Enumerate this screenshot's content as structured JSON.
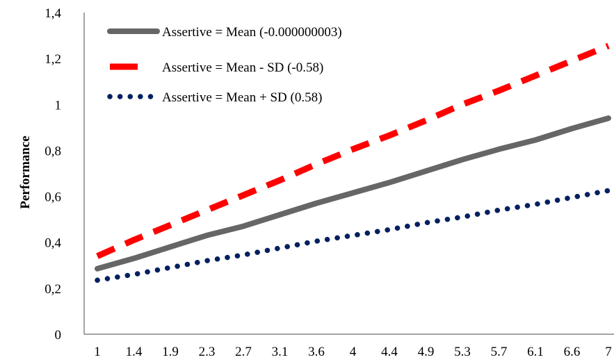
{
  "chart_data": {
    "type": "line",
    "title": "",
    "xlabel": "",
    "ylabel": "Performance",
    "categories": [
      "1",
      "1.4",
      "1.9",
      "2.3",
      "2.7",
      "3.1",
      "3.6",
      "4",
      "4.4",
      "4.9",
      "5.3",
      "5.7",
      "6.1",
      "6.6",
      "7"
    ],
    "y_ticks": [
      "0",
      "0,2",
      "0,4",
      "0,6",
      "0,8",
      "1",
      "1,2",
      "1,4"
    ],
    "ylim": [
      0,
      1.4
    ],
    "grid": false,
    "legend_position": "top-left",
    "series": [
      {
        "name": "Assertive = Mean (-0.000000003)",
        "color": "#666666",
        "style": "solid",
        "values": [
          0.285,
          0.33,
          0.38,
          0.43,
          0.47,
          0.52,
          0.57,
          0.615,
          0.66,
          0.71,
          0.76,
          0.805,
          0.845,
          0.895,
          0.94
        ]
      },
      {
        "name": "Assertive = Mean - SD (-0.58)",
        "color": "#ff0000",
        "style": "dashed",
        "values": [
          0.34,
          0.41,
          0.475,
          0.54,
          0.605,
          0.67,
          0.74,
          0.805,
          0.865,
          0.93,
          1.0,
          1.06,
          1.125,
          1.19,
          1.255
        ]
      },
      {
        "name": "Assertive = Mean + SD (0.58)",
        "color": "#002060",
        "style": "dotted",
        "values": [
          0.235,
          0.26,
          0.29,
          0.32,
          0.345,
          0.375,
          0.405,
          0.43,
          0.455,
          0.485,
          0.51,
          0.54,
          0.565,
          0.595,
          0.625
        ]
      }
    ]
  }
}
